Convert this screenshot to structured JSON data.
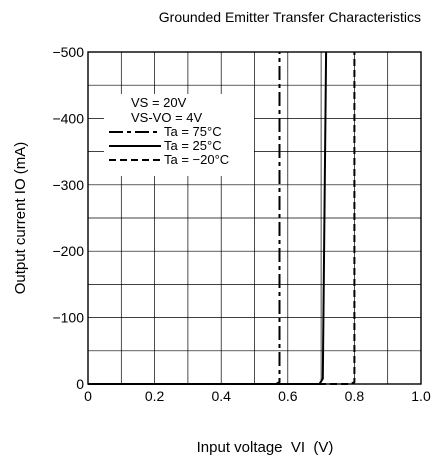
{
  "chart_data": {
    "type": "line",
    "title": "Grounded Emitter Transfer Characteristics",
    "xlabel": "Input voltage  VI  (V)",
    "ylabel": "Output current  IO (mA)",
    "xlim": [
      0,
      1.0
    ],
    "ylim": [
      0,
      -500
    ],
    "grid": true,
    "x_ticks": [
      {
        "value": 0,
        "label": "0"
      },
      {
        "value": 0.2,
        "label": "0.2"
      },
      {
        "value": 0.4,
        "label": "0.4"
      },
      {
        "value": 0.6,
        "label": "0.6"
      },
      {
        "value": 0.8,
        "label": "0.8"
      },
      {
        "value": 1.0,
        "label": "1.0"
      }
    ],
    "y_ticks": [
      {
        "value": 0,
        "label": "0"
      },
      {
        "value": -100,
        "label": "−100"
      },
      {
        "value": -200,
        "label": "−200"
      },
      {
        "value": -300,
        "label": "−300"
      },
      {
        "value": -400,
        "label": "−400"
      },
      {
        "value": -500,
        "label": "−500"
      }
    ],
    "conditions": [
      "VS = 20V",
      "VS-VO = 4V"
    ],
    "series": [
      {
        "name": "Ta = 75°C",
        "dash": "long-short",
        "x": [
          0,
          0.565,
          0.575,
          0.575
        ],
        "y": [
          0,
          0,
          -3,
          -500
        ]
      },
      {
        "name": "Ta = 25°C",
        "dash": "solid",
        "x": [
          0,
          0.695,
          0.705,
          0.715
        ],
        "y": [
          0,
          0,
          -8,
          -500
        ]
      },
      {
        "name": "Ta = −20°C",
        "dash": "dashed",
        "x": [
          0,
          0.79,
          0.8,
          0.8
        ],
        "y": [
          0,
          0,
          -3,
          -500
        ]
      }
    ],
    "legend_position": "upper-left"
  }
}
